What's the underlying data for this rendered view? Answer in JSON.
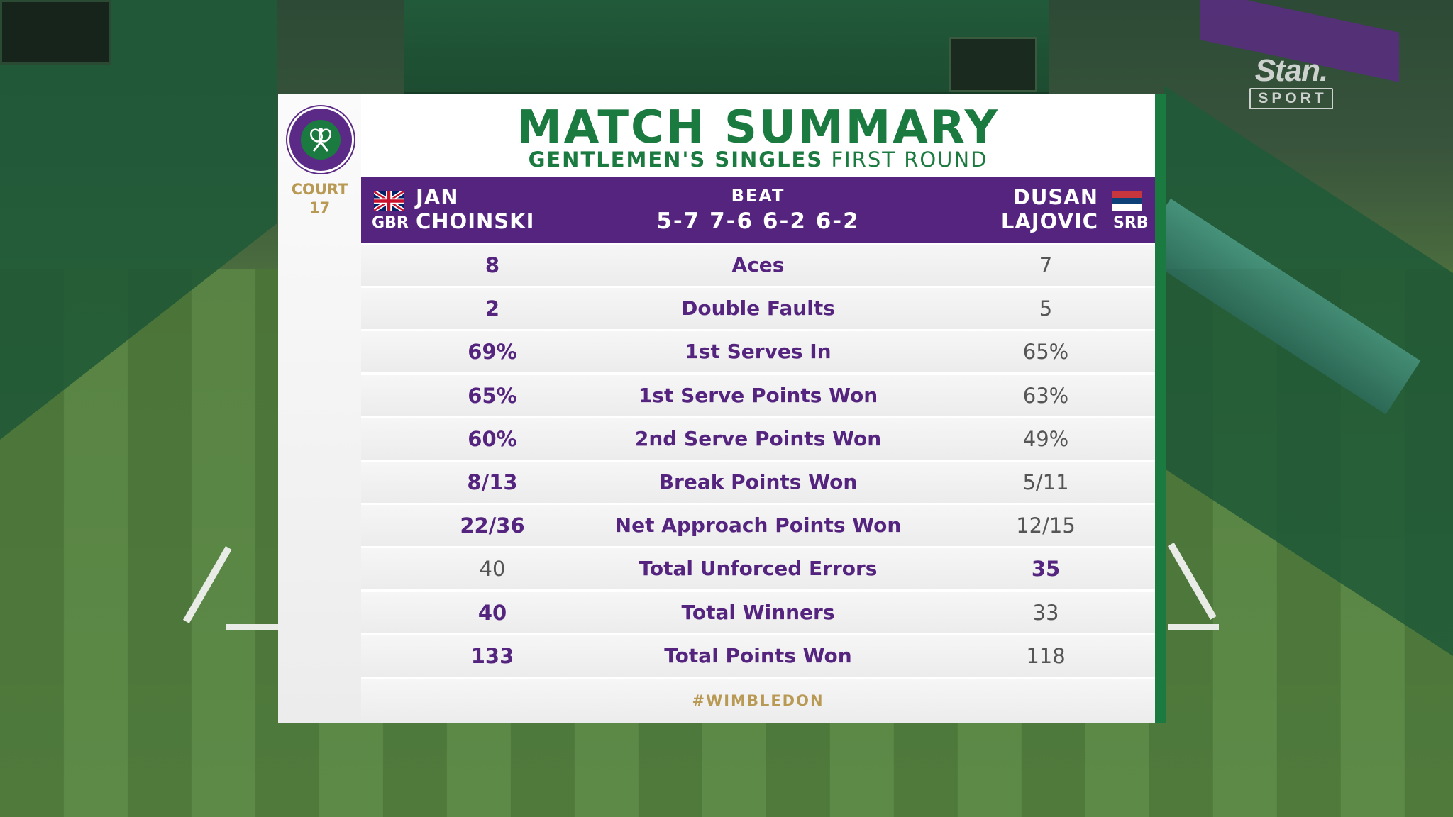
{
  "broadcaster": {
    "brand": "Stan.",
    "tag": "SPORT"
  },
  "venue": {
    "court_label": "COURT",
    "court_number": "17"
  },
  "header": {
    "title": "MATCH SUMMARY",
    "event": "GENTLEMEN'S SINGLES",
    "round": "FIRST ROUND"
  },
  "match": {
    "player1": {
      "first": "JAN",
      "last": "CHOINSKI",
      "country": "GBR"
    },
    "player2": {
      "first": "DUSAN",
      "last": "LAJOVIC",
      "country": "SRB"
    },
    "result_word": "BEAT",
    "score": "5-7 7-6 6-2 6-2"
  },
  "stats": [
    {
      "label": "Aces",
      "p1": "8",
      "p2": "7",
      "leader": "p1"
    },
    {
      "label": "Double Faults",
      "p1": "2",
      "p2": "5",
      "leader": "p1"
    },
    {
      "label": "1st Serves In",
      "p1": "69%",
      "p2": "65%",
      "leader": "p1"
    },
    {
      "label": "1st Serve Points Won",
      "p1": "65%",
      "p2": "63%",
      "leader": "p1"
    },
    {
      "label": "2nd Serve Points Won",
      "p1": "60%",
      "p2": "49%",
      "leader": "p1"
    },
    {
      "label": "Break Points Won",
      "p1": "8/13",
      "p2": "5/11",
      "leader": "p1"
    },
    {
      "label": "Net Approach Points Won",
      "p1": "22/36",
      "p2": "12/15",
      "leader": "p1"
    },
    {
      "label": "Total Unforced Errors",
      "p1": "40",
      "p2": "35",
      "leader": "p2"
    },
    {
      "label": "Total Winners",
      "p1": "40",
      "p2": "33",
      "leader": "p1"
    },
    {
      "label": "Total Points Won",
      "p1": "133",
      "p2": "118",
      "leader": "p1"
    }
  ],
  "footer": {
    "hashtag": "#WIMBLEDON"
  },
  "colors": {
    "purple": "#54247f",
    "green": "#1a7a3f",
    "gold": "#b99a55"
  }
}
